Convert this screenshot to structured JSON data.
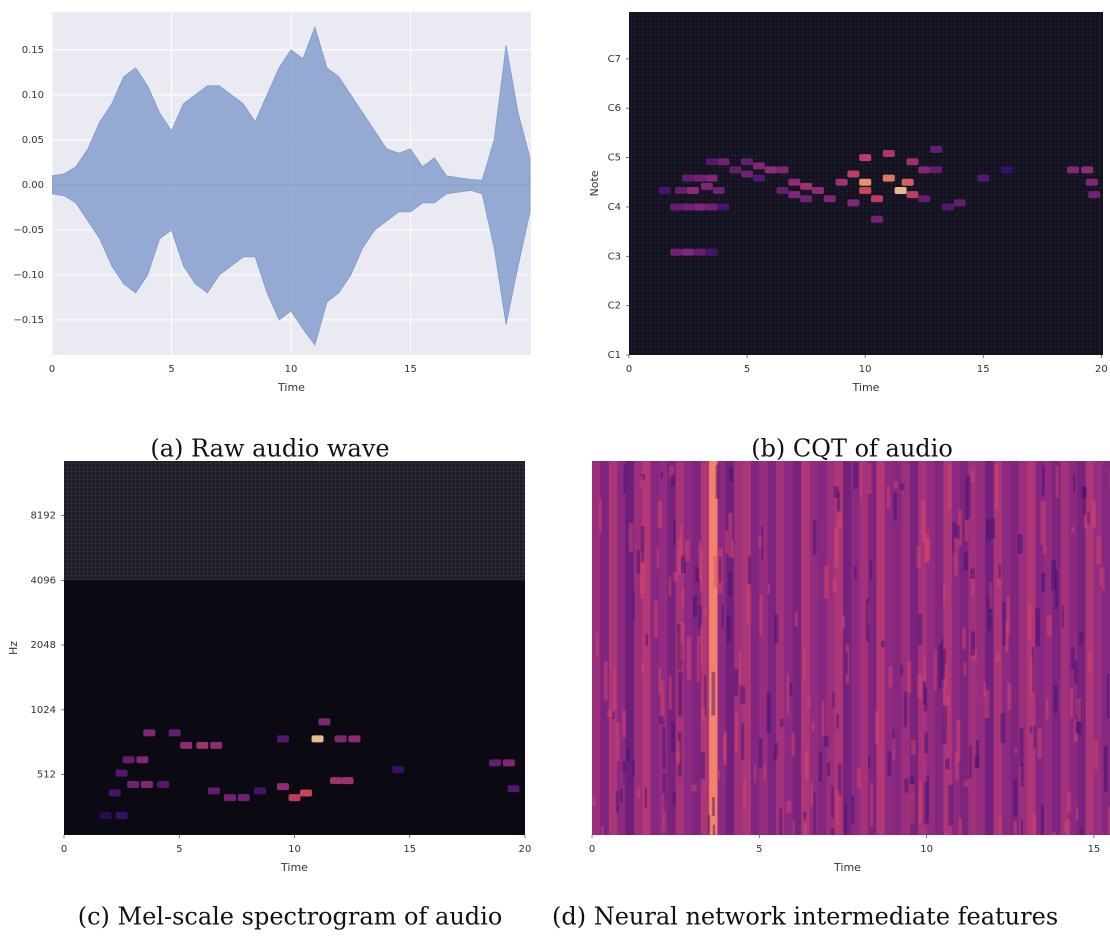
{
  "chart_data": [
    {
      "type": "area",
      "caption": "(a) Raw audio wave",
      "x_label": "Time",
      "x": [
        0,
        0.5,
        1,
        1.5,
        2,
        2.5,
        3,
        3.5,
        4,
        4.5,
        5,
        5.5,
        6,
        6.5,
        7,
        7.5,
        8,
        8.5,
        9,
        9.5,
        10,
        10.5,
        11,
        11.5,
        12,
        12.5,
        13,
        13.5,
        14,
        14.5,
        15,
        15.5,
        16,
        16.5,
        17,
        17.5,
        18,
        18.5,
        19,
        19.5,
        20
      ],
      "series": [
        {
          "color": "#7f9acb",
          "values": [
            0.01,
            0.012,
            0.02,
            0.04,
            0.07,
            0.09,
            0.12,
            0.13,
            0.11,
            0.08,
            0.06,
            0.09,
            0.1,
            0.11,
            0.11,
            0.1,
            0.09,
            0.07,
            0.1,
            0.13,
            0.15,
            0.14,
            0.175,
            0.13,
            0.12,
            0.1,
            0.08,
            0.06,
            0.04,
            0.035,
            0.04,
            0.02,
            0.03,
            0.01,
            0.008,
            0.006,
            0.005,
            0.05,
            0.155,
            0.08,
            0.03
          ]
        },
        {
          "color": "#7f9acb",
          "values": [
            -0.01,
            -0.012,
            -0.02,
            -0.04,
            -0.06,
            -0.09,
            -0.11,
            -0.12,
            -0.1,
            -0.06,
            -0.05,
            -0.09,
            -0.11,
            -0.12,
            -0.1,
            -0.09,
            -0.08,
            -0.08,
            -0.12,
            -0.15,
            -0.14,
            -0.16,
            -0.178,
            -0.13,
            -0.12,
            -0.1,
            -0.07,
            -0.05,
            -0.04,
            -0.03,
            -0.03,
            -0.02,
            -0.02,
            -0.01,
            -0.008,
            -0.006,
            -0.01,
            -0.07,
            -0.155,
            -0.09,
            -0.03
          ]
        }
      ],
      "xlim": [
        0,
        20.04
      ],
      "xticks": [
        0,
        5,
        10,
        15
      ],
      "ylim": [
        -0.189,
        0.192
      ],
      "yticks": [
        0.15,
        {
          "value": 0.1,
          "label": "0.10"
        },
        0.05,
        {
          "value": 0,
          "label": "0.00"
        },
        {
          "value": -0.05,
          "label": "−0.05"
        },
        {
          "value": -0.1,
          "label": "−0.10"
        },
        {
          "value": -0.15,
          "label": "−0.15"
        }
      ],
      "grid": true
    },
    {
      "type": "heatmap",
      "caption": "(b) CQT of audio",
      "x_label": "Time",
      "y_label": "Note",
      "x": [
        2.0,
        2.5,
        3.0,
        3.5,
        2.0,
        2.5,
        3,
        3.5,
        4,
        2.2,
        2.7,
        3.3,
        3.8,
        2.5,
        3.0,
        3.5,
        4,
        3.5,
        4.5,
        5,
        5.5,
        5,
        5.5,
        6,
        6.5,
        7,
        7.5,
        8,
        8.5,
        6.5,
        7,
        7.5,
        9,
        9.5,
        10,
        10,
        10.5,
        11,
        11.5,
        11.8,
        12,
        10,
        11,
        12,
        12.5,
        13,
        13,
        9.5,
        10.5,
        14,
        15,
        16,
        18.8,
        19.4,
        19.6,
        19.7,
        1.5,
        12.5,
        13.5
      ],
      "y": [
        49,
        49,
        49,
        49,
        60,
        60,
        60,
        60,
        60,
        64,
        64,
        65,
        64,
        67,
        67,
        67,
        71,
        71,
        69,
        68,
        67,
        71,
        70,
        69,
        69,
        66,
        65,
        64,
        62,
        64,
        63,
        62,
        66,
        68,
        66,
        64,
        62,
        67,
        64,
        66,
        63,
        72,
        73,
        71,
        69,
        69,
        74,
        61,
        57,
        61,
        67,
        69,
        69,
        69,
        66,
        63,
        64,
        62,
        60
      ],
      "values": [
        0.45,
        0.5,
        0.4,
        0.3,
        0.4,
        0.45,
        0.5,
        0.45,
        0.3,
        0.4,
        0.55,
        0.5,
        0.45,
        0.4,
        0.45,
        0.5,
        0.45,
        0.35,
        0.4,
        0.45,
        0.35,
        0.4,
        0.5,
        0.55,
        0.5,
        0.55,
        0.6,
        0.55,
        0.5,
        0.4,
        0.5,
        0.45,
        0.6,
        0.7,
        0.9,
        0.75,
        0.7,
        0.85,
        0.95,
        0.8,
        0.7,
        0.7,
        0.65,
        0.6,
        0.5,
        0.4,
        0.4,
        0.5,
        0.45,
        0.4,
        0.35,
        0.25,
        0.5,
        0.55,
        0.5,
        0.45,
        0.3,
        0.4,
        0.35
      ],
      "xlim": [
        0,
        20.07
      ],
      "xticks": [
        0,
        5,
        10,
        15,
        20
      ],
      "ylim": [
        24,
        107.4
      ],
      "yticks": [
        {
          "value": 24,
          "label": "C1"
        },
        {
          "value": 36,
          "label": "C2"
        },
        {
          "value": 48,
          "label": "C3"
        },
        {
          "value": 60,
          "label": "C4"
        },
        {
          "value": 72,
          "label": "C5"
        },
        {
          "value": 84,
          "label": "C6"
        },
        {
          "value": 96,
          "label": "C7"
        }
      ]
    },
    {
      "type": "heatmap",
      "caption": "(c) Mel-scale spectrogram of audio",
      "x_label": "Time",
      "y_label": "Hz",
      "log_y": true,
      "x": [
        3.7,
        4.8,
        5.3,
        6,
        6.6,
        2.8,
        3.4,
        2.5,
        3,
        3.6,
        4.3,
        2.2,
        6.5,
        7.2,
        7.8,
        8.5,
        9.5,
        10,
        10.5,
        11,
        11.3,
        11.8,
        12.3,
        12.6,
        12,
        9.5,
        14.5,
        18.7,
        19.3,
        19.5,
        1.8,
        2.5
      ],
      "y": [
        800,
        800,
        700,
        700,
        700,
        600,
        600,
        520,
        460,
        460,
        460,
        420,
        430,
        400,
        400,
        430,
        450,
        400,
        420,
        750,
        900,
        480,
        480,
        750,
        750,
        750,
        540,
        580,
        580,
        440,
        330,
        330
      ],
      "values": [
        0.5,
        0.4,
        0.55,
        0.6,
        0.55,
        0.4,
        0.5,
        0.35,
        0.45,
        0.5,
        0.35,
        0.3,
        0.4,
        0.45,
        0.45,
        0.3,
        0.55,
        0.7,
        0.75,
        0.95,
        0.5,
        0.6,
        0.6,
        0.55,
        0.5,
        0.35,
        0.25,
        0.4,
        0.5,
        0.35,
        0.2,
        0.25
      ],
      "xlim": [
        0,
        20
      ],
      "xticks": [
        0,
        5,
        10,
        15,
        20
      ],
      "ylim": [
        268,
        14700
      ],
      "yticks": [
        512,
        1024,
        2048,
        4096,
        8192
      ]
    },
    {
      "type": "heatmap",
      "caption": "(d) Neural network intermediate features",
      "x_label": "Time",
      "x": [
        0,
        0.25,
        0.5,
        0.75,
        1,
        1.25,
        1.5,
        1.75,
        2,
        2.25,
        2.5,
        2.75,
        3,
        3.25,
        3.5,
        3.75,
        4,
        4.25,
        4.5,
        4.75,
        5,
        5.25,
        5.5,
        5.75,
        6,
        6.25,
        6.5,
        6.75,
        7,
        7.25,
        7.5,
        7.75,
        8,
        8.25,
        8.5,
        8.75,
        9,
        9.25,
        9.5,
        9.75,
        10,
        10.25,
        10.5,
        10.75,
        11,
        11.25,
        11.5,
        11.75,
        12,
        12.25,
        12.5,
        12.75,
        13,
        13.25,
        13.5,
        13.75,
        14,
        14.25,
        14.5,
        14.75,
        15,
        15.25
      ],
      "values": [
        0.55,
        0.45,
        0.6,
        0.5,
        0.4,
        0.55,
        0.62,
        0.48,
        0.52,
        0.44,
        0.58,
        0.5,
        0.46,
        0.6,
        0.85,
        0.5,
        0.42,
        0.56,
        0.6,
        0.47,
        0.53,
        0.45,
        0.57,
        0.5,
        0.44,
        0.61,
        0.52,
        0.48,
        0.55,
        0.6,
        0.43,
        0.5,
        0.57,
        0.46,
        0.62,
        0.5,
        0.48,
        0.55,
        0.44,
        0.58,
        0.52,
        0.47,
        0.6,
        0.5,
        0.45,
        0.56,
        0.53,
        0.42,
        0.59,
        0.5,
        0.46,
        0.55,
        0.61,
        0.48,
        0.52,
        0.45,
        0.57,
        0.5,
        0.44,
        0.6,
        0.53,
        0.48
      ],
      "xlim": [
        0,
        15.48
      ],
      "xticks": [
        0,
        5,
        10,
        15
      ]
    }
  ]
}
